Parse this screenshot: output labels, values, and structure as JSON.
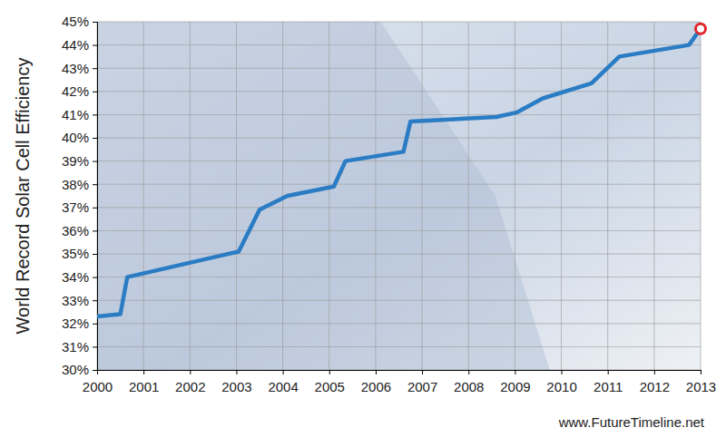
{
  "chart_data": {
    "type": "line",
    "ylabel": "World Record Solar Cell Efficiency",
    "annotations": [
      "www.FutureTimeline.net"
    ],
    "x": [
      2000.0,
      2000.5,
      2000.65,
      2003.05,
      2003.5,
      2004.1,
      2005.1,
      2005.35,
      2006.6,
      2006.75,
      2008.6,
      2009.05,
      2009.6,
      2010.65,
      2011.25,
      2012.75,
      2013.0
    ],
    "values": [
      32.3,
      32.4,
      34.0,
      35.1,
      36.9,
      37.5,
      37.9,
      39.0,
      39.4,
      40.7,
      40.9,
      41.1,
      41.7,
      42.35,
      43.5,
      44.0,
      44.7
    ],
    "color": "#2a7cc4",
    "marker": "circle",
    "xlim": [
      2000,
      2013
    ],
    "xticks": [
      2000,
      2001,
      2002,
      2003,
      2004,
      2005,
      2006,
      2007,
      2008,
      2009,
      2010,
      2011,
      2012,
      2013
    ],
    "ylim": [
      30,
      45
    ],
    "yticks": [
      {
        "value": 30,
        "label": "30%"
      },
      {
        "value": 31,
        "label": "31%"
      },
      {
        "value": 32,
        "label": "32%"
      },
      {
        "value": 33,
        "label": "33%"
      },
      {
        "value": 34,
        "label": "34%"
      },
      {
        "value": 35,
        "label": "35%"
      },
      {
        "value": 36,
        "label": "36%"
      },
      {
        "value": 37,
        "label": "37%"
      },
      {
        "value": 38,
        "label": "38%"
      },
      {
        "value": 39,
        "label": "39%"
      },
      {
        "value": 40,
        "label": "40%"
      },
      {
        "value": 41,
        "label": "41%"
      },
      {
        "value": 42,
        "label": "42%"
      },
      {
        "value": 43,
        "label": "43%"
      },
      {
        "value": 44,
        "label": "44%"
      },
      {
        "value": 45,
        "label": "45%"
      }
    ],
    "grid": true
  }
}
